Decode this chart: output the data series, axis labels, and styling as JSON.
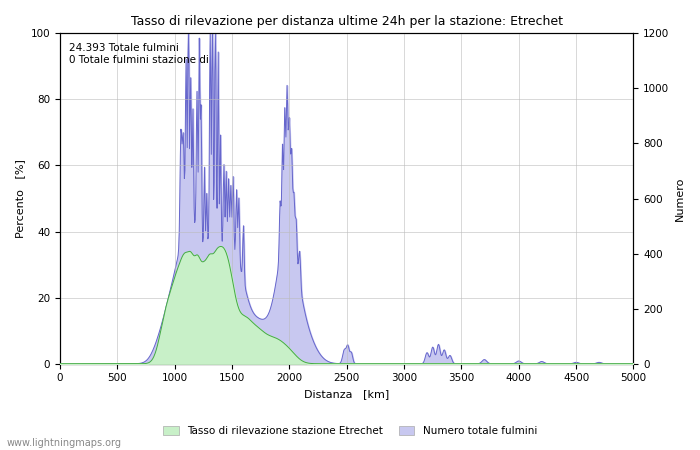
{
  "title": "Tasso di rilevazione per distanza ultime 24h per la stazione: Etrechet",
  "xlabel": "Distanza   [km]",
  "ylabel_left": "Percento   [%]",
  "ylabel_right": "Numero",
  "annotation_line1": "24.393 Totale fulmini",
  "annotation_line2": "0 Totale fulmini stazione di",
  "xlim": [
    0,
    5000
  ],
  "ylim_left": [
    0,
    100
  ],
  "ylim_right": [
    0,
    1200
  ],
  "xticks": [
    0,
    500,
    1000,
    1500,
    2000,
    2500,
    3000,
    3500,
    4000,
    4500,
    5000
  ],
  "yticks_left": [
    0,
    20,
    40,
    60,
    80,
    100
  ],
  "yticks_right": [
    0,
    200,
    400,
    600,
    800,
    1000,
    1200
  ],
  "legend_label_green": "Tasso di rilevazione stazione Etrechet",
  "legend_label_blue": "Numero totale fulmini",
  "watermark": "www.lightningmaps.org",
  "fill_blue_color": "#c8c8f0",
  "fill_green_color": "#c8f0c8",
  "line_blue_color": "#6666cc",
  "line_green_color": "#44aa44",
  "background_color": "#ffffff",
  "grid_color": "#bbbbbb"
}
